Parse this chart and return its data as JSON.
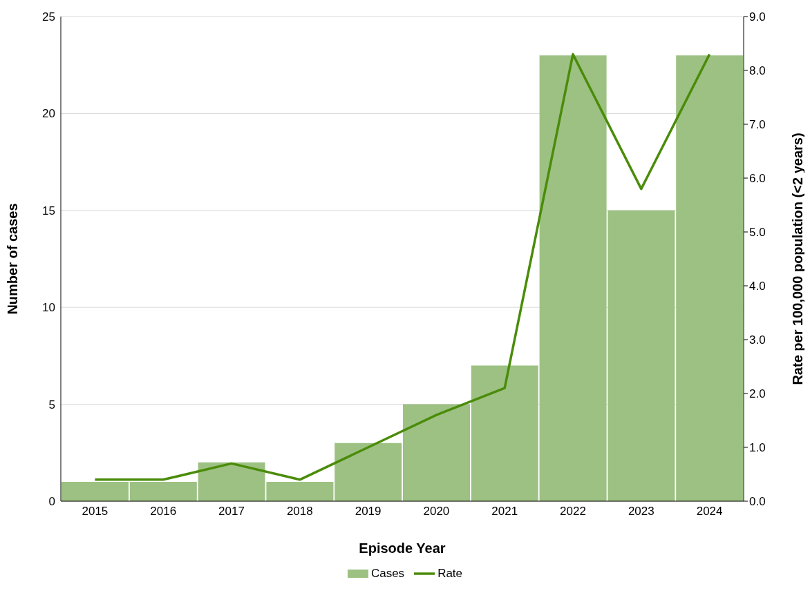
{
  "chart_data": {
    "type": "bar",
    "xlabel": "Episode Year",
    "ylabel": "Number of cases",
    "y2label": "Rate per 100,000 population (<2 years)",
    "categories": [
      "2015",
      "2016",
      "2017",
      "2018",
      "2019",
      "2020",
      "2021",
      "2022",
      "2023",
      "2024"
    ],
    "series": [
      {
        "name": "Cases",
        "type": "bar",
        "color": "#9dc183",
        "values": [
          1,
          1,
          2,
          1,
          3,
          5,
          7,
          23,
          15,
          23
        ]
      },
      {
        "name": "Rate",
        "type": "line",
        "axis": "y2",
        "color": "#4a8c0a",
        "values": [
          0.4,
          0.4,
          0.7,
          0.4,
          1.0,
          1.6,
          2.1,
          8.3,
          5.8,
          8.3
        ]
      }
    ],
    "ylim": [
      0,
      25
    ],
    "yticks": [
      0,
      5,
      10,
      15,
      20,
      25
    ],
    "y2lim": [
      0,
      9
    ],
    "y2ticks": [
      {
        "value": 0,
        "label": "0.0"
      },
      {
        "value": 1,
        "label": "1.0"
      },
      {
        "value": 2,
        "label": "2.0"
      },
      {
        "value": 3,
        "label": "3.0"
      },
      {
        "value": 4,
        "label": "4.0"
      },
      {
        "value": 5,
        "label": "5.0"
      },
      {
        "value": 6,
        "label": "6.0"
      },
      {
        "value": 7,
        "label": "7.0"
      },
      {
        "value": 8,
        "label": "8.0"
      },
      {
        "value": 9,
        "label": "9.0"
      }
    ],
    "grid": "y",
    "legend": "bottom",
    "marker": "none",
    "line_style": "solid"
  }
}
